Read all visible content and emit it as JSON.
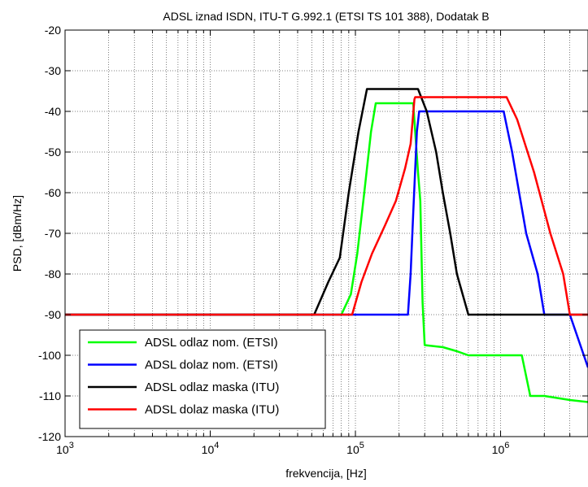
{
  "chart_data": {
    "type": "line",
    "title": "ADSL iznad ISDN, ITU-T G.992.1 (ETSI TS 101 388), Dodatak B",
    "xlabel": "frekvencija, [Hz]",
    "ylabel": "PSD, [dBm/Hz]",
    "x_scale": "log",
    "xlim": [
      1000,
      4000000
    ],
    "ylim": [
      -120,
      -20
    ],
    "x_ticks": [
      {
        "value": 1000,
        "base": "10",
        "exp": "3"
      },
      {
        "value": 10000,
        "base": "10",
        "exp": "4"
      },
      {
        "value": 100000,
        "base": "10",
        "exp": "5"
      },
      {
        "value": 1000000,
        "base": "10",
        "exp": "6"
      }
    ],
    "y_ticks": [
      {
        "value": -120,
        "label": "-120"
      },
      {
        "value": -110,
        "label": "-110"
      },
      {
        "value": -100,
        "label": "-100"
      },
      {
        "value": -90,
        "label": "-90"
      },
      {
        "value": -80,
        "label": "-80"
      },
      {
        "value": -70,
        "label": "-70"
      },
      {
        "value": -60,
        "label": "-60"
      },
      {
        "value": -50,
        "label": "-50"
      },
      {
        "value": -40,
        "label": "-40"
      },
      {
        "value": -30,
        "label": "-30"
      },
      {
        "value": -20,
        "label": "-20"
      }
    ],
    "grid": true,
    "legend_position": "bottom-left",
    "series": [
      {
        "name": "ADSL odlaz nom. (ETSI)",
        "color": "#00ff00",
        "points": [
          [
            1000,
            -90
          ],
          [
            80000,
            -90
          ],
          [
            93000,
            -85
          ],
          [
            103000,
            -75
          ],
          [
            115000,
            -60
          ],
          [
            128000,
            -45
          ],
          [
            138000,
            -38
          ],
          [
            250000,
            -38
          ],
          [
            270000,
            -55
          ],
          [
            280000,
            -62
          ],
          [
            290000,
            -87
          ],
          [
            300000,
            -97.5
          ],
          [
            400000,
            -98
          ],
          [
            500000,
            -99
          ],
          [
            600000,
            -100
          ],
          [
            1400000,
            -100
          ],
          [
            1600000,
            -110
          ],
          [
            2000000,
            -110
          ],
          [
            3000000,
            -111
          ],
          [
            4000000,
            -111.5
          ]
        ]
      },
      {
        "name": "ADSL dolaz nom. (ETSI)",
        "color": "#0000ff",
        "points": [
          [
            1000,
            -90
          ],
          [
            230000,
            -90
          ],
          [
            240000,
            -80
          ],
          [
            250000,
            -65
          ],
          [
            265000,
            -45
          ],
          [
            275000,
            -40
          ],
          [
            1050000,
            -40
          ],
          [
            1200000,
            -50
          ],
          [
            1500000,
            -70
          ],
          [
            1800000,
            -80
          ],
          [
            2000000,
            -90
          ],
          [
            3000000,
            -90
          ],
          [
            4000000,
            -103
          ]
        ]
      },
      {
        "name": "ADSL odlaz maska (ITU)",
        "color": "#000000",
        "points": [
          [
            1000,
            -90
          ],
          [
            52000,
            -90
          ],
          [
            65000,
            -82
          ],
          [
            78000,
            -76
          ],
          [
            90000,
            -60
          ],
          [
            105000,
            -45
          ],
          [
            120000,
            -34.5
          ],
          [
            270000,
            -34.5
          ],
          [
            310000,
            -40
          ],
          [
            360000,
            -50
          ],
          [
            400000,
            -60
          ],
          [
            450000,
            -70
          ],
          [
            500000,
            -80
          ],
          [
            600000,
            -90
          ],
          [
            4000000,
            -90
          ]
        ]
      },
      {
        "name": "ADSL dolaz maska (ITU)",
        "color": "#ff0000",
        "points": [
          [
            1000,
            -90
          ],
          [
            95000,
            -90
          ],
          [
            110000,
            -82
          ],
          [
            130000,
            -75
          ],
          [
            160000,
            -68
          ],
          [
            190000,
            -62
          ],
          [
            220000,
            -54
          ],
          [
            240000,
            -48
          ],
          [
            255000,
            -37
          ],
          [
            258000,
            -36.5
          ],
          [
            1100000,
            -36.5
          ],
          [
            1300000,
            -42
          ],
          [
            1700000,
            -55
          ],
          [
            2200000,
            -70
          ],
          [
            2700000,
            -80
          ],
          [
            3000000,
            -90
          ],
          [
            4000000,
            -90
          ]
        ]
      }
    ]
  }
}
